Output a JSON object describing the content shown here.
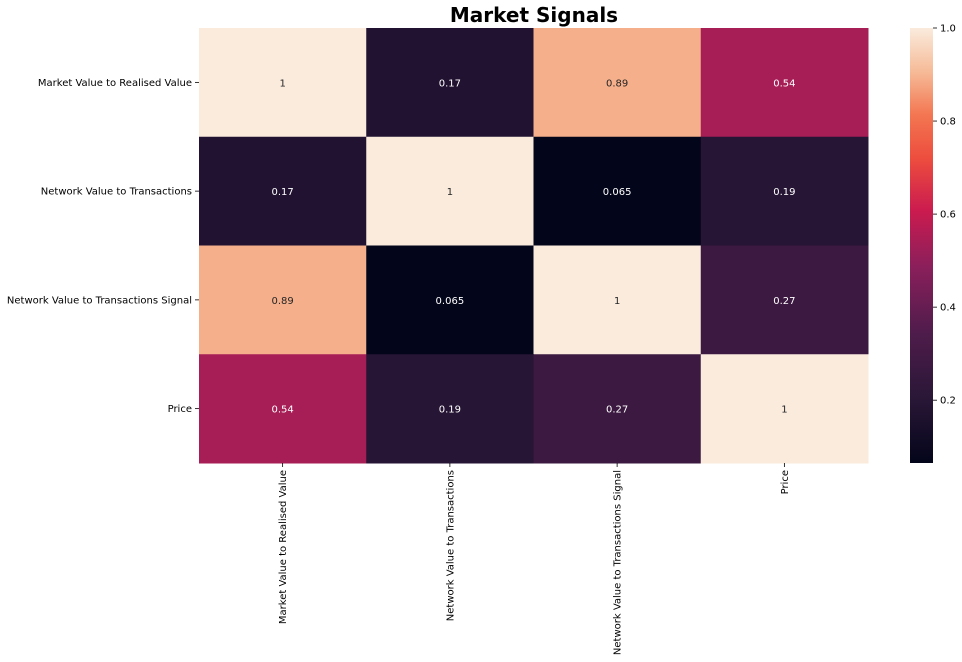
{
  "chart_data": {
    "type": "heatmap",
    "title": "Market Signals",
    "row_labels": [
      "Market Value to Realised Value",
      "Network Value to Transactions",
      "Network Value to Transactions Signal",
      "Price"
    ],
    "col_labels": [
      "Market Value to Realised Value",
      "Network Value to Transactions",
      "Network Value to Transactions Signal",
      "Price"
    ],
    "values": [
      [
        1,
        0.17,
        0.89,
        0.54
      ],
      [
        0.17,
        1,
        0.065,
        0.19
      ],
      [
        0.89,
        0.065,
        1,
        0.27
      ],
      [
        0.54,
        0.19,
        0.27,
        1
      ]
    ],
    "cell_labels": [
      [
        "1",
        "0.17",
        "0.89",
        "0.54"
      ],
      [
        "0.17",
        "1",
        "0.065",
        "0.19"
      ],
      [
        "0.89",
        "0.065",
        "1",
        "0.27"
      ],
      [
        "0.54",
        "0.19",
        "0.27",
        "1"
      ]
    ],
    "colormap": "rocket",
    "colorbar": {
      "range": [
        0.065,
        1.0
      ],
      "ticks": [
        0.2,
        0.4,
        0.6,
        0.8,
        1.0
      ],
      "tick_labels": [
        "0.2",
        "0.4",
        "0.6",
        "0.8",
        "1.0"
      ]
    }
  }
}
